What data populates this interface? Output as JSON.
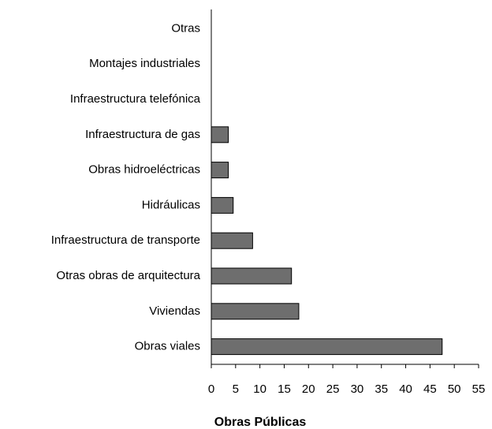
{
  "chart_data": {
    "type": "hbar",
    "title": "Obras Públicas",
    "categories": [
      "Otras",
      "Montajes industriales",
      "Infraestructura telefónica",
      "Infraestructura de gas",
      "Obras hidroeléctricas",
      "Hidráulicas",
      "Infraestructura de transporte",
      "Otras obras de arquitectura",
      "Viviendas",
      "Obras viales"
    ],
    "values": [
      0,
      0,
      0,
      3.5,
      3.5,
      4.5,
      8.5,
      16.5,
      18,
      47.5
    ],
    "color": "#6e6e6e",
    "xlim": [
      0,
      55
    ],
    "xticks": [
      0,
      5,
      10,
      15,
      20,
      25,
      30,
      35,
      40,
      45,
      50,
      55
    ]
  }
}
